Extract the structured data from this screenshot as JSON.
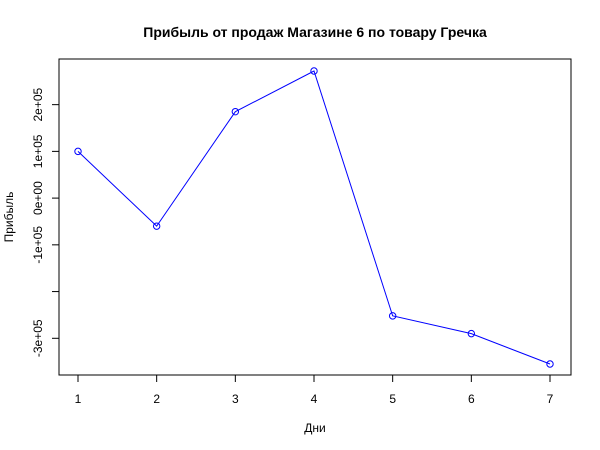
{
  "chart_data": {
    "type": "line",
    "title": "Прибыль от продаж Магазине 6 по товару Гречка",
    "xlabel": "Дни",
    "ylabel": "Прибыль",
    "x": [
      1,
      2,
      3,
      4,
      5,
      6,
      7
    ],
    "series": [
      {
        "values": [
          100000,
          -60000,
          185000,
          272000,
          -252000,
          -290000,
          -355000
        ],
        "color": "#0000ff"
      }
    ],
    "xlim": [
      1,
      7
    ],
    "ylim": [
      -355000,
      272000
    ],
    "xticks": [
      1,
      2,
      3,
      4,
      5,
      6,
      7
    ],
    "xtick_labels": [
      "1",
      "2",
      "3",
      "4",
      "5",
      "6",
      "7"
    ],
    "yticks": [
      -300000,
      -200000,
      -100000,
      0,
      100000,
      200000
    ],
    "ytick_labels": [
      "-3e+05",
      "",
      "-1e+05",
      "0e+00",
      "1e+05",
      "2e+05"
    ],
    "grid": false,
    "legend": "none"
  }
}
